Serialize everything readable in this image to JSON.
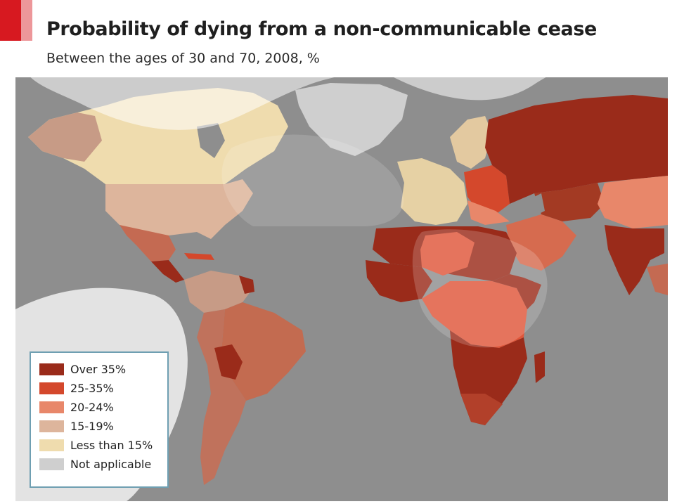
{
  "header": {
    "title": "Probability of dying from a non-communicable cease",
    "subtitle": "Between the ages of 30 and 70, 2008, %"
  },
  "colors": {
    "ocean": "#8e8e8e",
    "accent_red": "#d71920",
    "over_35": "#9a2b1a",
    "25_35": "#d4482c",
    "20_24": "#e8876a",
    "15_19": "#ddb59c",
    "less_15": "#efdcae",
    "not_applicable": "#cfcfcf"
  },
  "legend": {
    "items": [
      {
        "label": "Over 35%",
        "color": "#9a2b1a"
      },
      {
        "label": "25-35%",
        "color": "#d4482c"
      },
      {
        "label": "20-24%",
        "color": "#e8876a"
      },
      {
        "label": "15-19%",
        "color": "#ddb59c"
      },
      {
        "label": "Less than 15%",
        "color": "#efdcae"
      },
      {
        "label": "Not applicable",
        "color": "#cfcfcf"
      }
    ]
  },
  "map": {
    "regions": [
      {
        "name": "north-america",
        "category": "Less than 15%"
      },
      {
        "name": "united-states",
        "category": "15-19%"
      },
      {
        "name": "mexico",
        "category": "20-24%"
      },
      {
        "name": "central-america",
        "category": "Over 35%"
      },
      {
        "name": "caribbean",
        "category": "25-35%"
      },
      {
        "name": "greenland",
        "category": "Not applicable"
      },
      {
        "name": "south-america-north",
        "category": "15-19%"
      },
      {
        "name": "south-america-east",
        "category": "20-24%"
      },
      {
        "name": "south-america-south",
        "category": "20-24%"
      },
      {
        "name": "bolivia",
        "category": "Over 35%"
      },
      {
        "name": "guyana",
        "category": "Over 35%"
      },
      {
        "name": "western-europe",
        "category": "Less than 15%"
      },
      {
        "name": "scandinavia",
        "category": "Less than 15%"
      },
      {
        "name": "eastern-europe",
        "category": "25-35%"
      },
      {
        "name": "balkans",
        "category": "20-24%"
      },
      {
        "name": "russia",
        "category": "Over 35%"
      },
      {
        "name": "central-asia",
        "category": "Over 35%"
      },
      {
        "name": "china",
        "category": "20-24%"
      },
      {
        "name": "middle-east",
        "category": "20-24%"
      },
      {
        "name": "india",
        "category": "Over 35%"
      },
      {
        "name": "north-africa",
        "category": "Over 35%"
      },
      {
        "name": "west-africa",
        "category": "Over 35%"
      },
      {
        "name": "sahel",
        "category": "25-35%"
      },
      {
        "name": "central-africa",
        "category": "25-35%"
      },
      {
        "name": "east-africa",
        "category": "Over 35%"
      },
      {
        "name": "southern-africa",
        "category": "Over 35%"
      },
      {
        "name": "madagascar",
        "category": "Over 35%"
      }
    ]
  }
}
